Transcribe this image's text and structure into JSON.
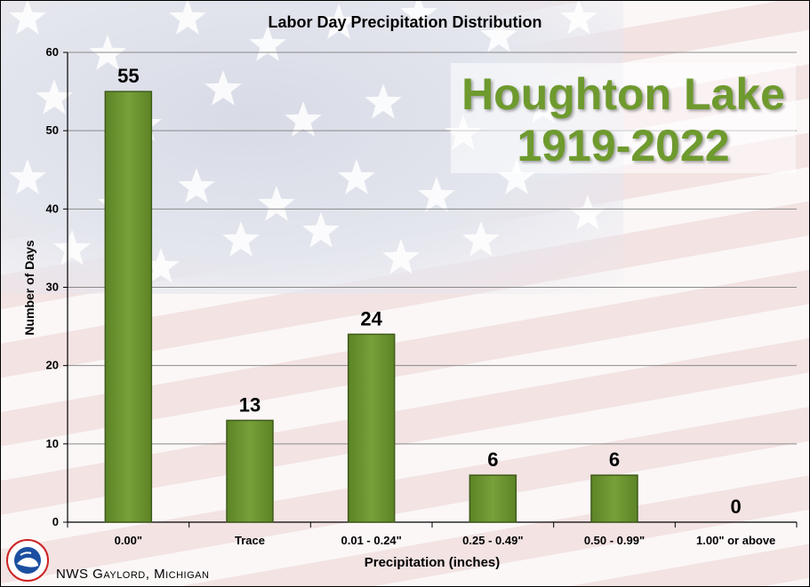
{
  "chart_data": {
    "type": "bar",
    "title": "Labor Day Precipitation Distribution",
    "subtitle_lines": [
      "Houghton Lake",
      "1919-2022"
    ],
    "xlabel": "Precipitation (inches)",
    "ylabel": "Number of Days",
    "categories": [
      "0.00\"",
      "Trace",
      "0.01 - 0.24\"",
      "0.25 - 0.49\"",
      "0.50 - 0.99\"",
      "1.00\" or above"
    ],
    "values": [
      55,
      13,
      24,
      6,
      6,
      0
    ],
    "ylim": [
      0,
      60
    ],
    "yticks": [
      0,
      10,
      20,
      30,
      40,
      50,
      60
    ],
    "grid": true,
    "bar_color": "#77a03a"
  },
  "footer": "NWS Gaylord, Michigan",
  "colors": {
    "title_green": "#6e9a2e",
    "bar": "#77a03a",
    "bar_edge": "#3f5a1a"
  }
}
